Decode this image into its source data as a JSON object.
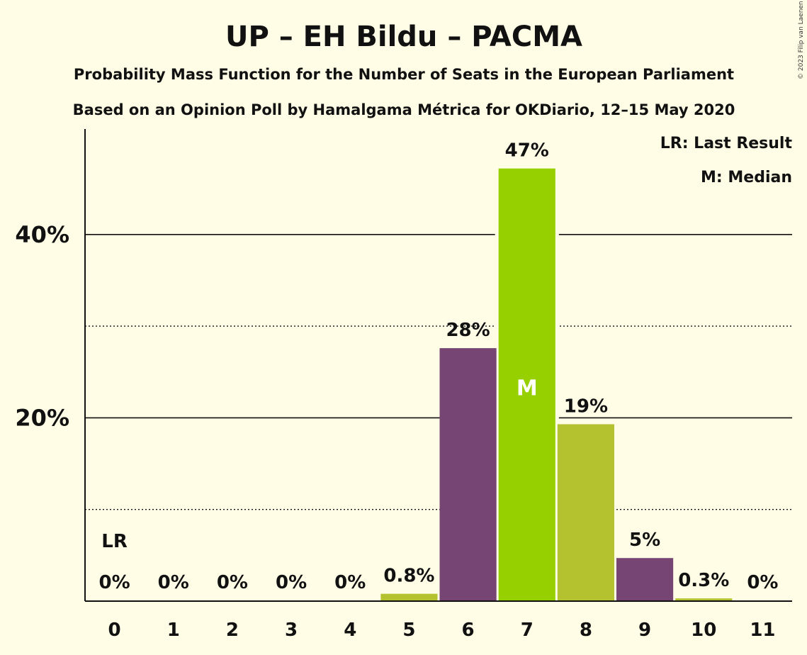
{
  "copyright": "© 2023 Filip van Laenen",
  "chart_data": {
    "type": "bar",
    "title": "UP – EH Bildu – PACMA",
    "subtitle": "Probability Mass Function for the Number of Seats in the European Parliament",
    "subtitle2": "Based on an Opinion Poll by Hamalgama Métrica for OKDiario, 12–15 May 2020",
    "legend": {
      "lr": "LR: Last Result",
      "m": "M: Median",
      "placement": "top-right"
    },
    "categories": [
      "0",
      "1",
      "2",
      "3",
      "4",
      "5",
      "6",
      "7",
      "8",
      "9",
      "10",
      "11"
    ],
    "values": [
      0,
      0,
      0,
      0,
      0,
      0.8,
      27.6,
      47.2,
      19.3,
      4.7,
      0.3,
      0
    ],
    "labels": [
      "0%",
      "0%",
      "0%",
      "0%",
      "0%",
      "0.8%",
      "28%",
      "47%",
      "19%",
      "5%",
      "0.3%",
      "0%"
    ],
    "colors": [
      "#B5C22F",
      "#B5C22F",
      "#B5C22F",
      "#B5C22F",
      "#B5C22F",
      "#B5C22F",
      "#764573",
      "#96D000",
      "#B5C22F",
      "#764573",
      "#B5C22F",
      "#B5C22F"
    ],
    "median_index": 7,
    "median_marker": "M",
    "last_result_index": 0,
    "last_result_marker": "LR",
    "ylim": [
      0,
      52
    ],
    "yticks": [
      {
        "value": 20,
        "label": "20%"
      },
      {
        "value": 40,
        "label": "40%"
      }
    ],
    "minor_gridlines": [
      10,
      30
    ],
    "background": "#FFFDE6"
  }
}
